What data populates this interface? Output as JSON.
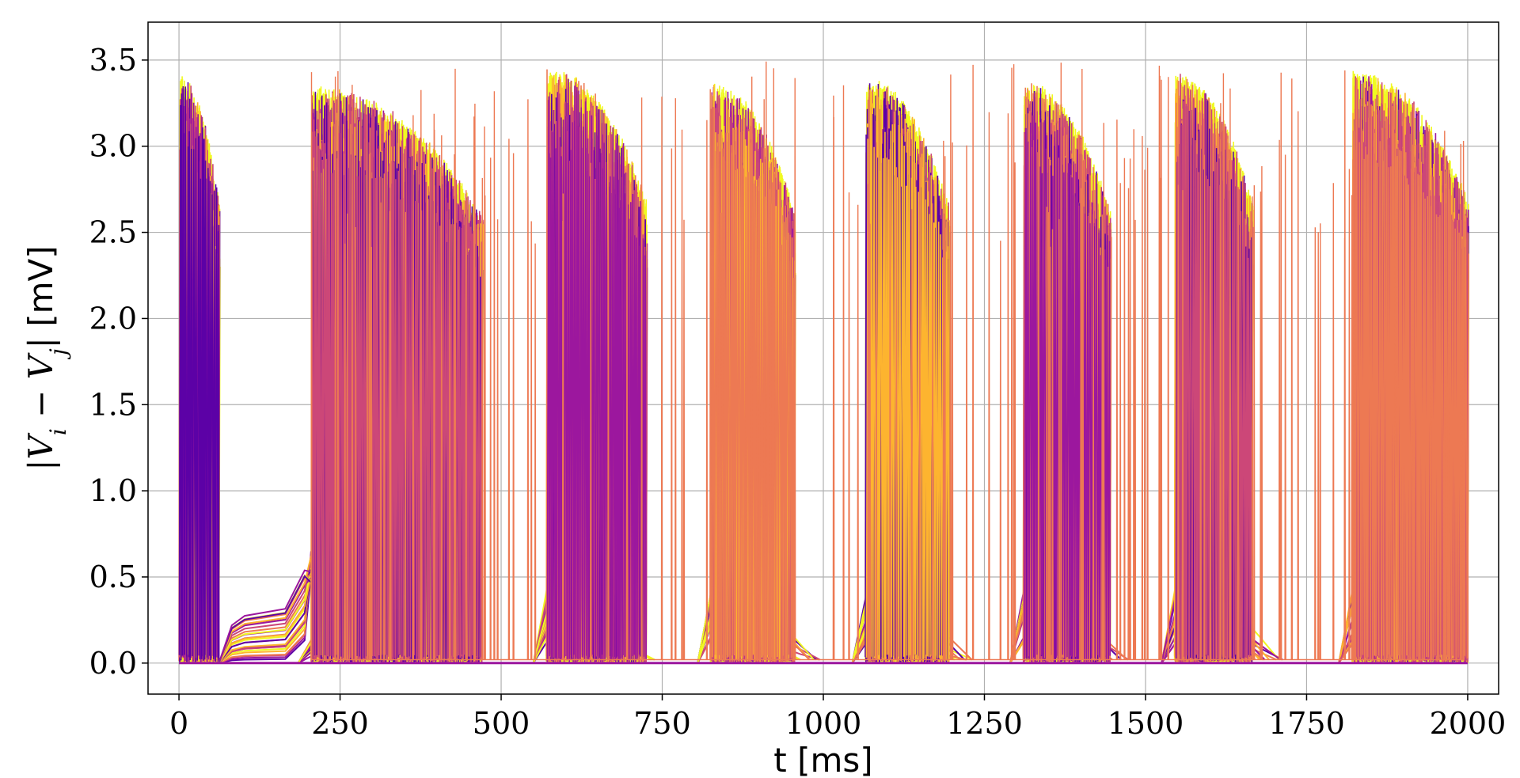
{
  "chart_data": {
    "type": "line",
    "xlabel": "t [ms]",
    "ylabel_parts": {
      "open": "|",
      "vi": "V",
      "vi_sub": "i",
      "minus": " − ",
      "vj": "V",
      "vj_sub": "j",
      "close": "|",
      "unit": " [mV]"
    },
    "xlim": [
      -48,
      2048
    ],
    "ylim": [
      -0.18,
      3.72
    ],
    "x_ticks": [
      0,
      250,
      500,
      750,
      1000,
      1250,
      1500,
      1750,
      2000
    ],
    "x_tick_labels": [
      "0",
      "250",
      "500",
      "750",
      "1000",
      "1250",
      "1500",
      "1750",
      "2000"
    ],
    "y_ticks": [
      0.0,
      0.5,
      1.0,
      1.5,
      2.0,
      2.5,
      3.0,
      3.5
    ],
    "y_tick_labels": [
      "0.0",
      "0.5",
      "1.0",
      "1.5",
      "2.0",
      "2.5",
      "3.0",
      "3.5"
    ],
    "grid": true,
    "colormap": "plasma",
    "colors": [
      "#5c01a6",
      "#9c179e",
      "#cc4778",
      "#ed7953",
      "#fdb42f",
      "#f0f921"
    ],
    "t_range": [
      0,
      2000
    ],
    "bursts": [
      {
        "start": 0,
        "end": 62,
        "peak": 3.42,
        "tail": 0
      },
      {
        "start": 205,
        "end": 470,
        "peak": 3.35,
        "tail": 0.2
      },
      {
        "start": 570,
        "end": 725,
        "peak": 3.46,
        "tail": 0.65
      },
      {
        "start": 825,
        "end": 955,
        "peak": 3.37,
        "tail": 0.6
      },
      {
        "start": 1065,
        "end": 1195,
        "peak": 3.4,
        "tail": 0.62
      },
      {
        "start": 1310,
        "end": 1445,
        "peak": 3.38,
        "tail": 0.6
      },
      {
        "start": 1545,
        "end": 1665,
        "peak": 3.43,
        "tail": 0.62
      },
      {
        "start": 1820,
        "end": 2000,
        "peak": 3.45,
        "tail": 0.62
      }
    ],
    "quiescent_plateau": {
      "start": 62,
      "end": 205,
      "level_min": 0.02,
      "level_max": 0.31
    }
  }
}
